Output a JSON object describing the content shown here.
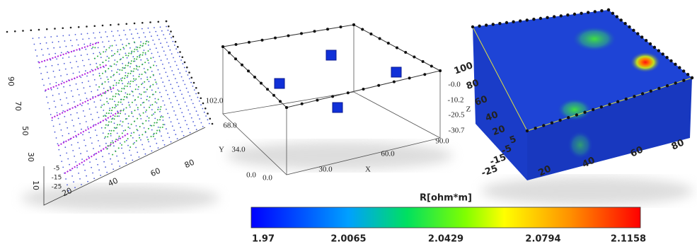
{
  "left_panel": {
    "y_ticks": [
      "90",
      "70",
      "50",
      "30",
      "10"
    ],
    "x_ticks": [
      "20",
      "40",
      "60",
      "80"
    ],
    "z_ticks": [
      "-5",
      "-15",
      "-25"
    ]
  },
  "middle_panel": {
    "y_label": "Y",
    "y_ticks": [
      "102.0",
      "68.0",
      "34.0",
      "0.0"
    ],
    "x_label": "X",
    "x_ticks": [
      "0.0",
      "30.0",
      "60.0",
      "90.0"
    ],
    "z_label": "Z",
    "z_ticks": [
      "-0.0",
      "-10.2",
      "-20.5",
      "-30.7"
    ]
  },
  "right_panel": {
    "y_ticks": [
      "100",
      "80",
      "60",
      "40",
      "20"
    ],
    "z_ticks": [
      "5",
      "-5",
      "-15",
      "-25"
    ],
    "x_ticks": [
      "20",
      "40",
      "60",
      "80"
    ]
  },
  "colorbar": {
    "title": "R[ohm*m]",
    "ticks": [
      "1.97",
      "2.0065",
      "2.0429",
      "2.0794",
      "2.1158"
    ]
  }
}
